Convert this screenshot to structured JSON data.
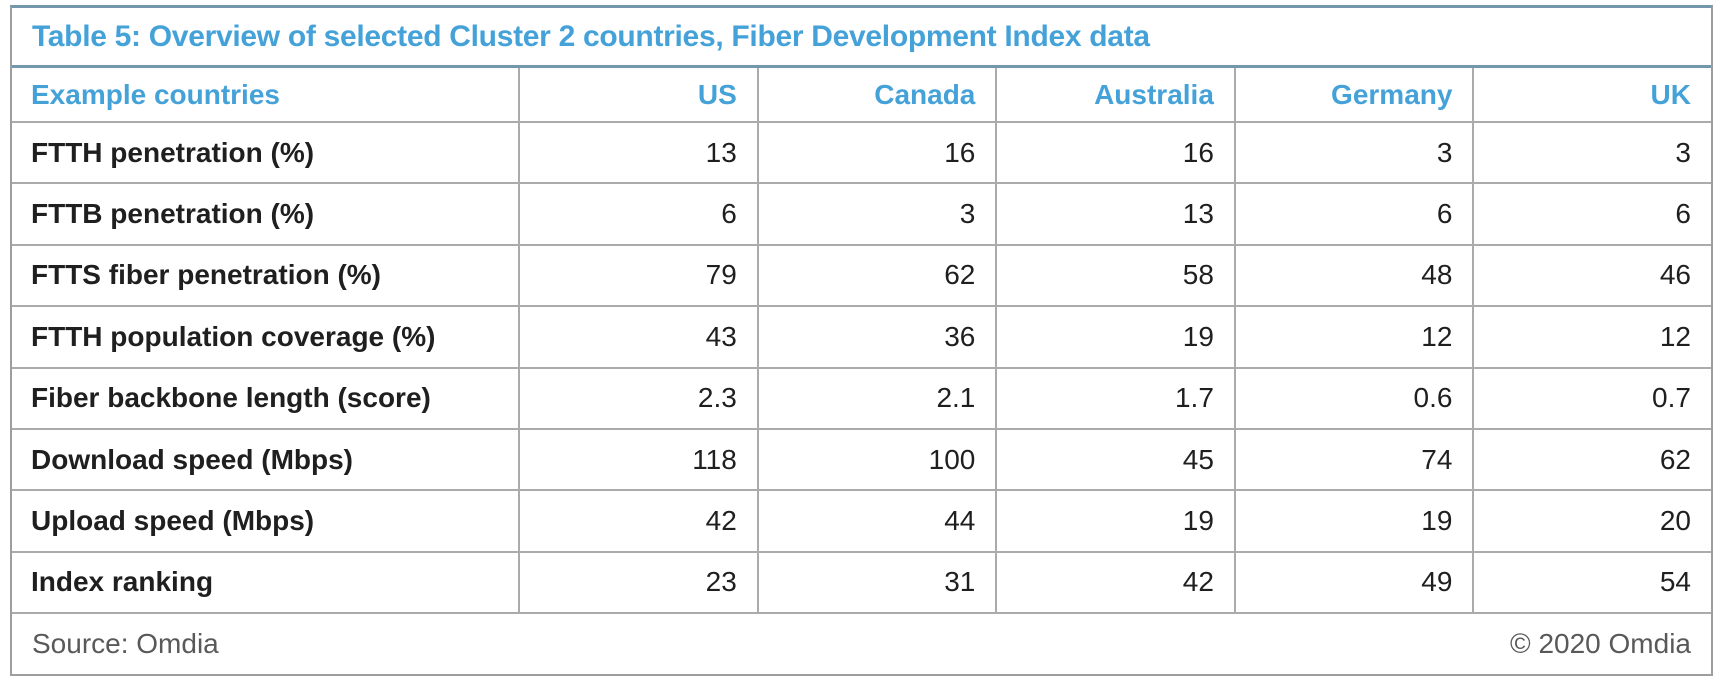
{
  "colors": {
    "accent_blue": "#45a2d9",
    "rule_steel_blue": "#7497ad",
    "grid_gray": "#ababab",
    "body_text": "#1f1f1f",
    "footer_gray": "#595959"
  },
  "chart_data": {
    "type": "table",
    "title": "Table 5: Overview of selected Cluster 2 countries, Fiber Development Index data",
    "columns": [
      "Example countries",
      "US",
      "Canada",
      "Australia",
      "Germany",
      "UK"
    ],
    "rows": [
      {
        "label": "FTTH penetration (%)",
        "values": [
          "13",
          "16",
          "16",
          "3",
          "3"
        ]
      },
      {
        "label": "FTTB penetration (%)",
        "values": [
          "6",
          "3",
          "13",
          "6",
          "6"
        ]
      },
      {
        "label": "FTTS fiber penetration (%)",
        "values": [
          "79",
          "62",
          "58",
          "48",
          "46"
        ]
      },
      {
        "label": "FTTH population coverage (%)",
        "values": [
          "43",
          "36",
          "19",
          "12",
          "12"
        ]
      },
      {
        "label": "Fiber backbone length (score)",
        "values": [
          "2.3",
          "2.1",
          "1.7",
          "0.6",
          "0.7"
        ]
      },
      {
        "label": "Download speed (Mbps)",
        "values": [
          "118",
          "100",
          "45",
          "74",
          "62"
        ]
      },
      {
        "label": "Upload speed (Mbps)",
        "values": [
          "42",
          "44",
          "19",
          "19",
          "20"
        ]
      },
      {
        "label": "Index ranking",
        "values": [
          "23",
          "31",
          "42",
          "49",
          "54"
        ]
      }
    ],
    "source": "Source: Omdia",
    "copyright": "© 2020 Omdia",
    "layout": {
      "grid": true,
      "header_text_align": "right",
      "value_text_align": "right"
    }
  }
}
